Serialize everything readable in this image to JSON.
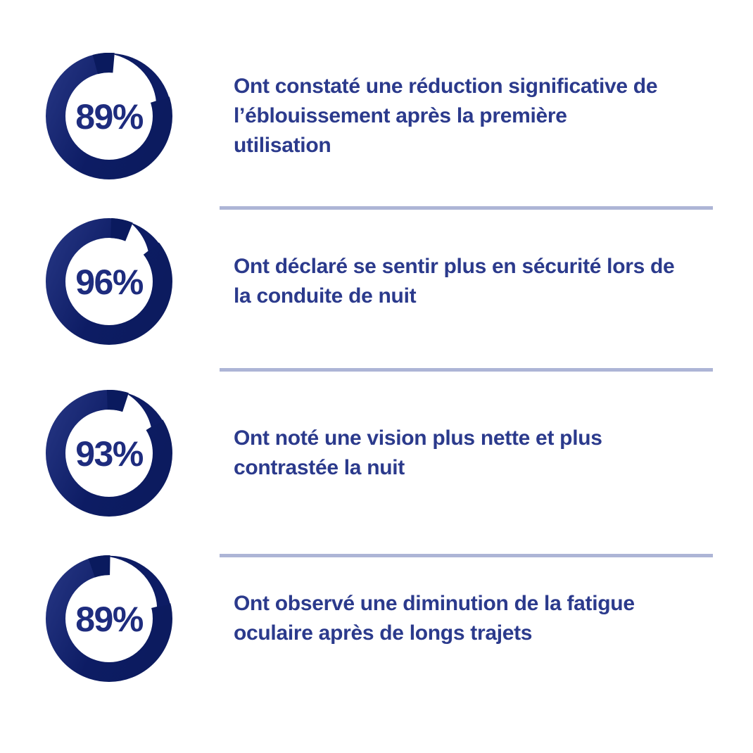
{
  "chart_data": {
    "type": "donut",
    "title": "",
    "unit": "%",
    "legend_position": "right-of-each-ring",
    "series": [
      {
        "value": 89,
        "label": "Ont constaté une réduction significative de l’éblouissement après la première utilisation"
      },
      {
        "value": 96,
        "label": "Ont déclaré se sentir plus en sécurité lors de la conduite de nuit"
      },
      {
        "value": 93,
        "label": "Ont noté une vision plus nette et plus contrastée la nuit"
      },
      {
        "value": 89,
        "label": "Ont observé une diminution de la fatigue oculaire après de longs trajets"
      }
    ]
  },
  "stats": [
    {
      "percent_label": "89%",
      "description": "Ont constaté une réduction significative de\nl’éblouissement après la première\nutilisation",
      "gap_start": 5,
      "gap_end": 72
    },
    {
      "percent_label": "96%",
      "description": "Ont déclaré se sentir plus en sécurité lors de\nla conduite de nuit",
      "gap_start": 22,
      "gap_end": 52
    },
    {
      "percent_label": "93%",
      "description": "Ont noté une vision plus nette et plus\ncontrastée la nuit",
      "gap_start": 18,
      "gap_end": 58
    },
    {
      "percent_label": "89%",
      "description": "Ont observé une diminution de la fatigue\noculaire après de longs trajets",
      "gap_start": 1,
      "gap_end": 76
    }
  ],
  "colors": {
    "ring_dark": "#0D1C64",
    "ring_gradient_light": "#22327F",
    "ring_gradient_dark": "#0C1B5F",
    "ring_block": "#0A1A5E",
    "percent_text": "#1E2C7E",
    "body_text": "#2B3A8C",
    "divider": "#ADB5D6",
    "background": "#FFFFFF"
  }
}
